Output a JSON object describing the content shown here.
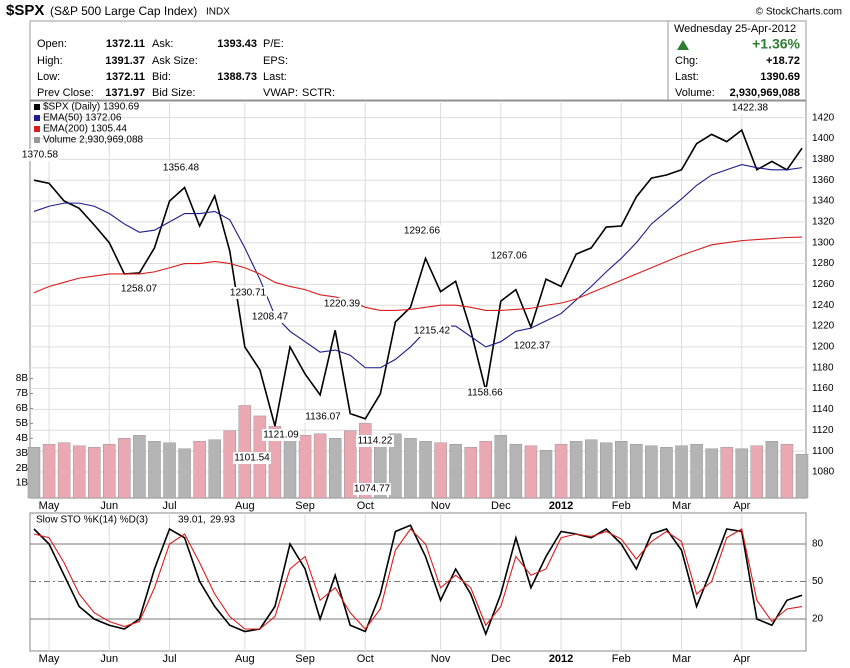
{
  "header": {
    "symbol": "$SPX",
    "name": "(S&P 500 Large Cap Index)",
    "exchange": "INDX",
    "credit": "© StockCharts.com",
    "quote": [
      [
        "Open:",
        1372.11,
        "Ask:",
        1393.43,
        "P/E:"
      ],
      [
        "High:",
        1391.37,
        "Ask Size:",
        "EPS:"
      ],
      [
        "Low:",
        1372.11,
        "Bid:",
        1388.73,
        "Last:"
      ],
      [
        "Prev Close:",
        1371.97,
        "Bid Size:",
        "VWAP:",
        "SCTR:"
      ]
    ],
    "date": "Wednesday  25-Apr-2012",
    "change_pct": "+1.36%",
    "chg_label": "Chg:",
    "chg": "+18.72",
    "last_label": "Last:",
    "last": "1390.69",
    "volume_label": "Volume:",
    "volume": "2,930,969,088"
  },
  "chart_data": [
    {
      "type": "line",
      "categories": [
        null,
        "May",
        null,
        null,
        null,
        "Jun",
        null,
        null,
        null,
        "Jul",
        null,
        null,
        null,
        null,
        "Aug",
        null,
        null,
        null,
        "Sep",
        null,
        null,
        null,
        "Oct",
        null,
        null,
        null,
        null,
        "Nov",
        null,
        null,
        null,
        "Dec",
        null,
        null,
        null,
        "2012",
        null,
        null,
        null,
        "Feb",
        null,
        null,
        null,
        "Mar",
        null,
        null,
        null,
        "Apr",
        null,
        null,
        null,
        null
      ],
      "series": [
        {
          "name": "$SPX (Daily) 1390.69",
          "color": "#000000",
          "values": [
            1360,
            1357,
            1340,
            1333,
            1317,
            1300,
            1270,
            1271,
            1295,
            1340,
            1353,
            1316,
            1345,
            1292,
            1200,
            1178,
            1124,
            1200,
            1174,
            1154,
            1216,
            1136,
            1131,
            1155,
            1224,
            1238,
            1285,
            1253,
            1263,
            1216,
            1158,
            1244,
            1255,
            1219,
            1265,
            1258,
            1289,
            1295,
            1315,
            1316,
            1344,
            1362,
            1365,
            1370,
            1395,
            1404,
            1397,
            1408,
            1370,
            1378,
            1370,
            1390.69
          ]
        },
        {
          "name": "EMA(50) 1372.06",
          "color": "#1c1c8c",
          "values": [
            1330,
            1335,
            1338,
            1338,
            1335,
            1328,
            1318,
            1310,
            1312,
            1320,
            1328,
            1328,
            1330,
            1322,
            1295,
            1265,
            1230,
            1215,
            1205,
            1195,
            1197,
            1192,
            1180,
            1180,
            1188,
            1200,
            1215,
            1220,
            1220,
            1210,
            1200,
            1205,
            1215,
            1218,
            1225,
            1232,
            1245,
            1258,
            1272,
            1285,
            1300,
            1318,
            1330,
            1342,
            1355,
            1365,
            1370,
            1375,
            1372,
            1370,
            1370,
            1372.06
          ]
        },
        {
          "name": "EMA(200) 1305.44",
          "color": "#dd1c1c",
          "values": [
            1252,
            1258,
            1262,
            1266,
            1268,
            1270,
            1270,
            1270,
            1272,
            1276,
            1280,
            1280,
            1282,
            1280,
            1276,
            1270,
            1262,
            1258,
            1255,
            1250,
            1248,
            1244,
            1238,
            1235,
            1235,
            1236,
            1238,
            1240,
            1240,
            1238,
            1235,
            1235,
            1236,
            1237,
            1240,
            1242,
            1246,
            1252,
            1258,
            1264,
            1270,
            1276,
            1282,
            1288,
            1293,
            1298,
            1300,
            1302,
            1303,
            1304,
            1305,
            1305.44
          ]
        },
        {
          "name": "Volume 2,930,969,088",
          "type": "bar",
          "axis": "y2",
          "color": "#999999",
          "up_color": "#b4b4b4",
          "down_color": "#eaa8b2",
          "values": [
            3400000000,
            3600000000,
            3700000000,
            3500000000,
            3400000000,
            3600000000,
            4000000000,
            4200000000,
            3800000000,
            3700000000,
            3300000000,
            3800000000,
            3900000000,
            4500000000,
            6200000000,
            5500000000,
            4800000000,
            4000000000,
            4200000000,
            4300000000,
            4000000000,
            4500000000,
            5000000000,
            4200000000,
            4300000000,
            4000000000,
            3800000000,
            3700000000,
            3600000000,
            3400000000,
            3800000000,
            4200000000,
            3600000000,
            3500000000,
            3200000000,
            3600000000,
            3800000000,
            3900000000,
            3700000000,
            3800000000,
            3600000000,
            3500000000,
            3400000000,
            3500000000,
            3600000000,
            3300000000,
            3400000000,
            3300000000,
            3500000000,
            3800000000,
            3600000000,
            2930969088
          ]
        }
      ],
      "annotations": [
        1370.58,
        1356.48,
        1258.07,
        1230.71,
        1208.47,
        1220.39,
        1215.42,
        1292.66,
        1267.06,
        1202.37,
        1158.66,
        1136.07,
        1121.09,
        1114.22,
        1101.54,
        1074.77,
        1422.38
      ],
      "ylim": [
        1055,
        1436
      ],
      "yticks": [
        1080,
        1100,
        1120,
        1140,
        1160,
        1180,
        1200,
        1220,
        1240,
        1260,
        1280,
        1300,
        1320,
        1340,
        1360,
        1380,
        1400,
        1420
      ],
      "y2lim": [
        0,
        26600000000
      ],
      "y2ticks": [
        {
          "value": 1000000000,
          "label": "1B"
        },
        {
          "value": 2000000000,
          "label": "2B"
        },
        {
          "value": 3000000000,
          "label": "3B"
        },
        {
          "value": 4000000000,
          "label": "4B"
        },
        {
          "value": 5000000000,
          "label": "5B"
        },
        {
          "value": 6000000000,
          "label": "6B"
        },
        {
          "value": 7000000000,
          "label": "7B"
        },
        {
          "value": 8000000000,
          "label": "8B"
        }
      ],
      "grid": true
    },
    {
      "type": "line",
      "label": "Slow STO %K(14) %D(3)",
      "last_k": "39.01,",
      "last_d": "29.93",
      "categories": [
        null,
        "May",
        null,
        null,
        null,
        "Jun",
        null,
        null,
        null,
        "Jul",
        null,
        null,
        null,
        null,
        "Aug",
        null,
        null,
        null,
        "Sep",
        null,
        null,
        null,
        "Oct",
        null,
        null,
        null,
        null,
        "Nov",
        null,
        null,
        null,
        "Dec",
        null,
        null,
        null,
        "2012",
        null,
        null,
        null,
        "Feb",
        null,
        null,
        null,
        "Mar",
        null,
        null,
        null,
        "Apr",
        null,
        null,
        null,
        null
      ],
      "series": [
        {
          "color": "#000000",
          "values": [
            92,
            80,
            55,
            30,
            20,
            15,
            12,
            20,
            60,
            92,
            85,
            50,
            30,
            15,
            10,
            12,
            30,
            80,
            60,
            20,
            55,
            15,
            10,
            40,
            90,
            95,
            70,
            35,
            60,
            40,
            8,
            40,
            85,
            45,
            70,
            90,
            88,
            85,
            92,
            80,
            60,
            88,
            92,
            75,
            30,
            60,
            92,
            90,
            20,
            15,
            35,
            39.01
          ]
        },
        {
          "color": "#dd1c1c",
          "values": [
            88,
            85,
            65,
            40,
            25,
            18,
            14,
            18,
            45,
            80,
            88,
            65,
            40,
            22,
            12,
            12,
            22,
            60,
            70,
            35,
            45,
            25,
            12,
            28,
            75,
            92,
            80,
            45,
            55,
            45,
            15,
            30,
            70,
            55,
            60,
            85,
            88,
            86,
            90,
            84,
            68,
            82,
            90,
            82,
            40,
            50,
            85,
            92,
            35,
            18,
            28,
            29.93
          ]
        }
      ],
      "ylim": [
        -5.6,
        104.8
      ],
      "yticks": [
        20,
        50,
        80
      ],
      "grid": true
    }
  ]
}
